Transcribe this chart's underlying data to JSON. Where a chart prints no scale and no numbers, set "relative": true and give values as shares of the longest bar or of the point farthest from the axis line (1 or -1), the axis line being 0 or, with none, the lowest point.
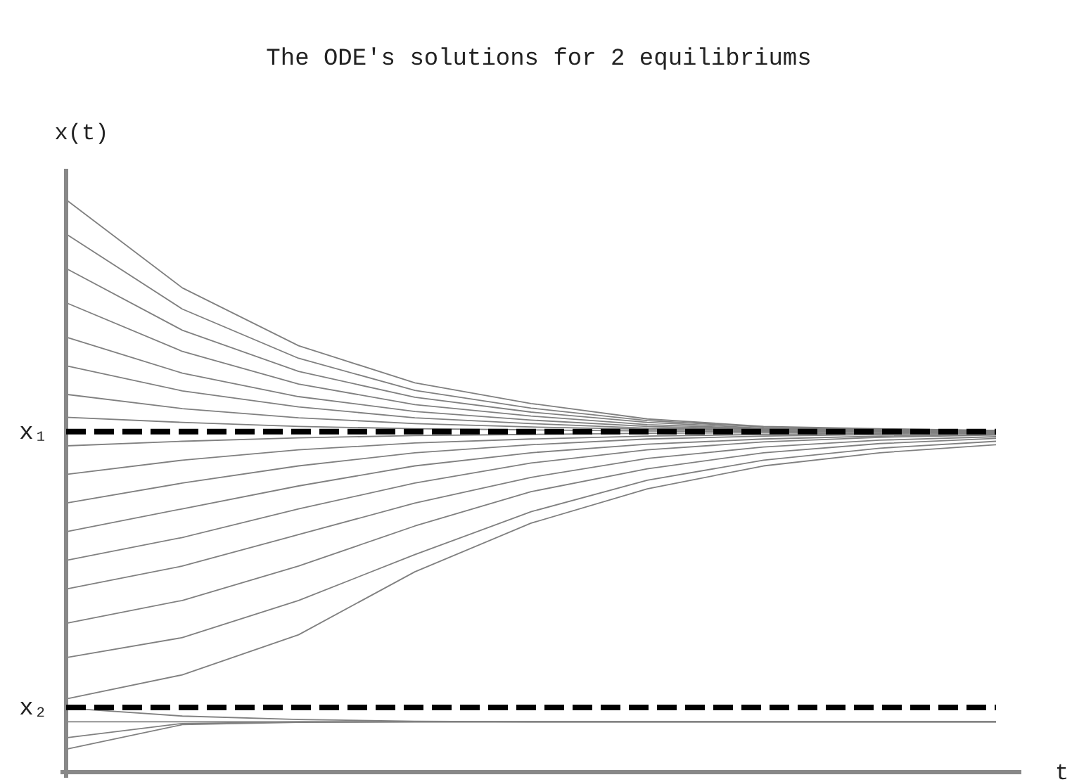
{
  "chart_data": {
    "type": "line",
    "title": "The ODE's solutions for 2 equilibriums",
    "xlabel": "t",
    "ylabel": "x(t)",
    "relative": true,
    "line_style": "solid",
    "categories": [
      null,
      null,
      null,
      null,
      null,
      null,
      null,
      null,
      null
    ],
    "series": [
      {
        "color": "#808080",
        "values": [
          1.0,
          0.846,
          0.745,
          0.68,
          0.644,
          0.617,
          0.604,
          0.6,
          0.597
        ]
      },
      {
        "color": "#808080",
        "values": [
          0.94,
          0.809,
          0.723,
          0.667,
          0.636,
          0.614,
          0.603,
          0.599,
          0.597
        ]
      },
      {
        "color": "#808080",
        "values": [
          0.88,
          0.772,
          0.7,
          0.655,
          0.629,
          0.611,
          0.601,
          0.598,
          0.596
        ]
      },
      {
        "color": "#808080",
        "values": [
          0.82,
          0.735,
          0.678,
          0.642,
          0.622,
          0.607,
          0.6,
          0.598,
          0.596
        ]
      },
      {
        "color": "#808080",
        "values": [
          0.76,
          0.697,
          0.656,
          0.63,
          0.615,
          0.604,
          0.599,
          0.597,
          0.596
        ]
      },
      {
        "color": "#808080",
        "values": [
          0.71,
          0.666,
          0.638,
          0.619,
          0.609,
          0.601,
          0.598,
          0.596,
          0.595
        ]
      },
      {
        "color": "#808080",
        "values": [
          0.66,
          0.635,
          0.619,
          0.609,
          0.603,
          0.599,
          0.596,
          0.595,
          0.595
        ]
      },
      {
        "color": "#808080",
        "values": [
          0.62,
          0.611,
          0.604,
          0.6,
          0.598,
          0.596,
          0.595,
          0.595,
          0.595
        ]
      },
      {
        "color": "#808080",
        "values": [
          0.57,
          0.578,
          0.584,
          0.588,
          0.59,
          0.592,
          0.593,
          0.594,
          0.594
        ]
      },
      {
        "color": "#808080",
        "values": [
          0.52,
          0.545,
          0.563,
          0.575,
          0.582,
          0.587,
          0.59,
          0.592,
          0.593
        ]
      },
      {
        "color": "#808080",
        "values": [
          0.47,
          0.505,
          0.535,
          0.558,
          0.572,
          0.582,
          0.587,
          0.59,
          0.592
        ]
      },
      {
        "color": "#808080",
        "values": [
          0.42,
          0.46,
          0.5,
          0.535,
          0.558,
          0.573,
          0.582,
          0.587,
          0.59
        ]
      },
      {
        "color": "#808080",
        "values": [
          0.37,
          0.41,
          0.46,
          0.505,
          0.54,
          0.563,
          0.577,
          0.585,
          0.589
        ]
      },
      {
        "color": "#808080",
        "values": [
          0.32,
          0.36,
          0.415,
          0.47,
          0.515,
          0.548,
          0.568,
          0.58,
          0.586
        ]
      },
      {
        "color": "#808080",
        "values": [
          0.26,
          0.3,
          0.36,
          0.43,
          0.49,
          0.53,
          0.558,
          0.574,
          0.583
        ]
      },
      {
        "color": "#808080",
        "values": [
          0.2,
          0.235,
          0.3,
          0.38,
          0.455,
          0.51,
          0.545,
          0.566,
          0.578
        ]
      },
      {
        "color": "#808080",
        "values": [
          0.128,
          0.17,
          0.24,
          0.35,
          0.435,
          0.495,
          0.535,
          0.558,
          0.572
        ]
      },
      {
        "color": "#808080",
        "values": [
          0.112,
          0.098,
          0.092,
          0.089,
          0.088,
          0.088,
          0.088,
          0.088,
          0.088
        ]
      },
      {
        "color": "#808080",
        "values": [
          0.088,
          0.088,
          0.088,
          0.088,
          0.088,
          0.088,
          0.088,
          0.088,
          0.088
        ]
      },
      {
        "color": "#808080",
        "values": [
          0.06,
          0.085,
          0.088,
          0.088,
          0.088,
          0.088,
          0.088,
          0.088,
          0.088
        ]
      },
      {
        "color": "#808080",
        "values": [
          0.04,
          0.083,
          0.087,
          0.088,
          0.088,
          0.088,
          0.088,
          0.088,
          0.088
        ]
      }
    ],
    "ref_lines": [
      {
        "axis": "y",
        "value": 0.595,
        "label": "x₁",
        "color": "#000000",
        "line_style": "dashed"
      },
      {
        "axis": "y",
        "value": 0.113,
        "label": "x₂",
        "color": "#000000",
        "line_style": "dashed"
      }
    ]
  }
}
